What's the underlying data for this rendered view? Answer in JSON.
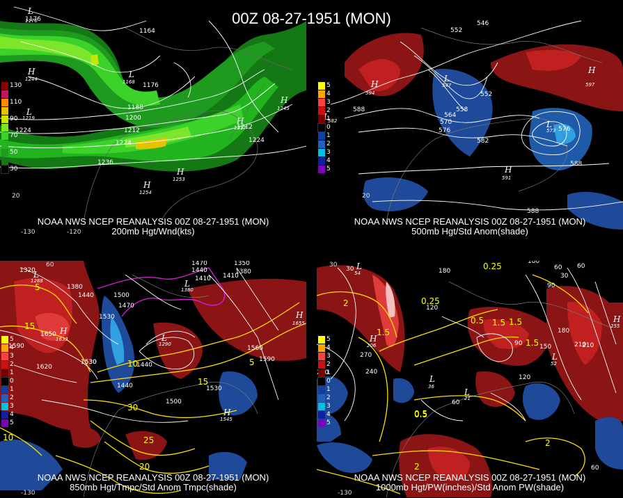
{
  "main_title": "00Z 08-27-1951 (MON)",
  "panels": [
    {
      "caption1": "NOAA NWS NCEP REANALYSIS 00Z 08-27-1951 (MON)",
      "caption2": "200mb Hgt/Wnd(kts)",
      "legend": [
        {
          "label": "130",
          "color": "#8b0000"
        },
        {
          "label": "",
          "color": "#c2185b"
        },
        {
          "label": "110",
          "color": "#ff8c00"
        },
        {
          "label": "",
          "color": "#e6c200"
        },
        {
          "label": "90",
          "color": "#c8e600"
        },
        {
          "label": "",
          "color": "#7ee62a"
        },
        {
          "label": "70",
          "color": "#3cd22a"
        },
        {
          "label": "",
          "color": "#22b41e"
        },
        {
          "label": "50",
          "color": "#1e9a1e"
        },
        {
          "label": "",
          "color": "#147814"
        },
        {
          "label": "30",
          "color": "#000000"
        }
      ],
      "contour_labels": [
        "1176",
        "1164",
        "1176",
        "1188",
        "1200",
        "1212",
        "1224",
        "1236",
        "1224",
        "1212",
        "1224"
      ],
      "lows": [
        {
          "label": "L",
          "value": "1176"
        },
        {
          "label": "L",
          "value": "1168"
        },
        {
          "label": "L",
          "value": "1219"
        }
      ],
      "highs": [
        {
          "label": "H",
          "value": "1244"
        },
        {
          "label": "H",
          "value": "1253"
        },
        {
          "label": "H",
          "value": "1254"
        },
        {
          "label": "H",
          "value": "1245"
        },
        {
          "label": "H",
          "value": "1217"
        }
      ],
      "lon_ticks": [
        "-130",
        "-120"
      ],
      "lat_ticks": [
        "20"
      ]
    },
    {
      "caption1": "NOAA NWS NCEP REANALYSIS 00Z 08-27-1951 (MON)",
      "caption2": "500mb Hgt/Std Anom(shade)",
      "legend": [
        {
          "label": "5",
          "color": "#ffff00"
        },
        {
          "label": "4",
          "color": "#ffa500"
        },
        {
          "label": "3",
          "color": "#ff4040"
        },
        {
          "label": "2",
          "color": "#d01010"
        },
        {
          "label": "1",
          "color": "#7a0000"
        },
        {
          "label": "0",
          "color": "#000000"
        },
        {
          "label": "1",
          "color": "#1040a0"
        },
        {
          "label": "2",
          "color": "#2060c0"
        },
        {
          "label": "3",
          "color": "#00c0e0"
        },
        {
          "label": "4",
          "color": "#1020a0"
        },
        {
          "label": "5",
          "color": "#8000c0"
        }
      ],
      "contour_labels": [
        "552",
        "546",
        "588",
        "552",
        "558",
        "564",
        "570",
        "576",
        "582",
        "576",
        "588",
        "588"
      ],
      "lows": [
        {
          "label": "L",
          "value": "582"
        },
        {
          "label": "L",
          "value": "547"
        },
        {
          "label": "L",
          "value": "573"
        }
      ],
      "highs": [
        {
          "label": "H",
          "value": "594"
        },
        {
          "label": "H",
          "value": "597"
        },
        {
          "label": "H",
          "value": "591"
        }
      ],
      "lat_ticks": [
        "20"
      ]
    },
    {
      "caption1": "NOAA NWS NCEP REANALYSIS 00Z 08-27-1951 (MON)",
      "caption2": "850mb Hgt/Tmpc/Std Anom Tmpc(shade)",
      "legend": [
        {
          "label": "5",
          "color": "#ffff00"
        },
        {
          "label": "4",
          "color": "#ffa500"
        },
        {
          "label": "3",
          "color": "#ff4040"
        },
        {
          "label": "2",
          "color": "#d01010"
        },
        {
          "label": "1",
          "color": "#7a0000"
        },
        {
          "label": "0",
          "color": "#000000"
        },
        {
          "label": "1",
          "color": "#1040a0"
        },
        {
          "label": "2",
          "color": "#2060c0"
        },
        {
          "label": "3",
          "color": "#00c0e0"
        },
        {
          "label": "4",
          "color": "#1020a0"
        },
        {
          "label": "5",
          "color": "#8000c0"
        }
      ],
      "contour_labels": [
        "1320",
        "1380",
        "1440",
        "1500",
        "1470",
        "1530",
        "1650",
        "1590",
        "1620",
        "1530",
        "1440",
        "1470",
        "1440",
        "1410",
        "1350",
        "1380",
        "1410",
        "1560",
        "1590",
        "1530",
        "1500",
        "1440",
        "1530"
      ],
      "temp_labels": [
        "5",
        "15",
        "10",
        "30",
        "25",
        "20",
        "15",
        "5",
        "10"
      ],
      "lows": [
        {
          "label": "L",
          "value": "1288"
        },
        {
          "label": "L",
          "value": "1380"
        },
        {
          "label": "L",
          "value": "1290"
        }
      ],
      "highs": [
        {
          "label": "H",
          "value": "1633"
        },
        {
          "label": "H",
          "value": "1655"
        },
        {
          "label": "H",
          "value": "1545"
        }
      ],
      "lon_ticks": [
        "-130"
      ],
      "lat_ticks": [
        "60"
      ]
    },
    {
      "caption1": "NOAA NWS NCEP REANALYSIS 00Z 08-27-1951 (MON)",
      "caption2": "1000mb Hgt/PW(inches)/Std Anom PW(shade)",
      "legend": [
        {
          "label": "5",
          "color": "#ffff00"
        },
        {
          "label": "4",
          "color": "#ffa500"
        },
        {
          "label": "3",
          "color": "#ff4040"
        },
        {
          "label": "2",
          "color": "#d01010"
        },
        {
          "label": "1",
          "color": "#7a0000"
        },
        {
          "label": "0",
          "color": "#000000"
        },
        {
          "label": "1",
          "color": "#1040a0"
        },
        {
          "label": "2",
          "color": "#2060c0"
        },
        {
          "label": "3",
          "color": "#00c0e0"
        },
        {
          "label": "4",
          "color": "#1020a0"
        },
        {
          "label": "5",
          "color": "#8000c0"
        }
      ],
      "contour_labels": [
        "30",
        "180",
        "180",
        "120",
        "60",
        "90",
        "30",
        "60",
        "90",
        "210",
        "270",
        "240",
        "210",
        "120",
        "60",
        "150",
        "180",
        "210",
        "60"
      ],
      "pw_labels": [
        "2",
        "1.5",
        "0.25",
        "0.25",
        "0.5",
        "0.5",
        "1.5",
        "1.5",
        "0.5",
        "2",
        "2",
        "1.5"
      ],
      "lows": [
        {
          "label": "L",
          "value": "54"
        },
        {
          "label": "L",
          "value": "36"
        },
        {
          "label": "L",
          "value": "21"
        },
        {
          "label": "L",
          "value": "52"
        }
      ],
      "highs": [
        {
          "label": "H",
          "value": "206"
        },
        {
          "label": "H",
          "value": "255"
        }
      ],
      "lon_ticks": [
        "-130"
      ],
      "lat_ticks": [
        "30"
      ]
    }
  ],
  "colors": {
    "jet_strong": "#e6c200",
    "jet_mid": "#7ee62a",
    "jet_weak": "#22b41e",
    "anom_pos": "#b01818",
    "anom_pos2": "#e03a3a",
    "anom_neg": "#1f5aa8",
    "anom_neg2": "#30a0e0",
    "temp_contour": "#ffdd00",
    "freezing_contour": "#d020d0",
    "height_contour": "#ffffff"
  }
}
